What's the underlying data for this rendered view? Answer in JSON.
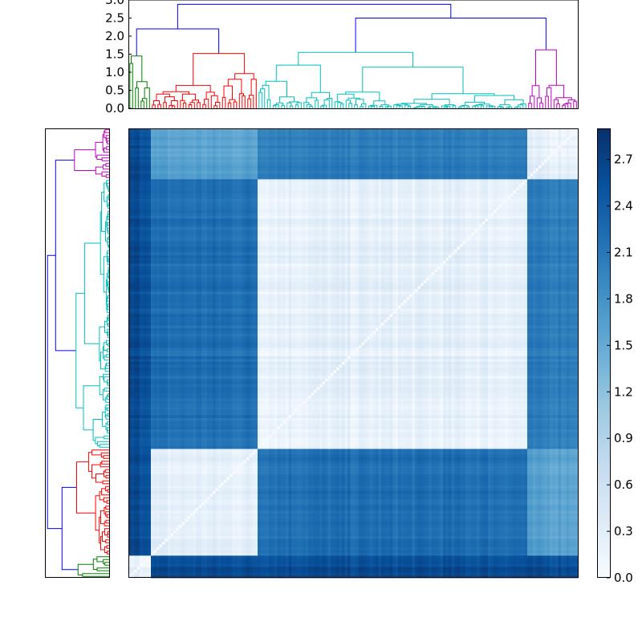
{
  "chart_data": {
    "type": "heatmap",
    "title": "",
    "xlabel": "",
    "ylabel": "",
    "colormap": "Blues",
    "colors": {
      "cmap_low": "#f7fbff",
      "cmap_mid": "#6baed6",
      "cmap_high": "#08306b",
      "link_above_threshold": "#0000ff",
      "cluster_green": "#008000",
      "cluster_red": "#ff0000",
      "cluster_cyan": "#00bfbf",
      "cluster_magenta": "#bf00bf"
    },
    "clusters": [
      {
        "id": "green",
        "color": "#008000",
        "fraction": 0.05
      },
      {
        "id": "red",
        "color": "#ff0000",
        "fraction": 0.24
      },
      {
        "id": "cyan",
        "color": "#00bfbf",
        "fraction": 0.6
      },
      {
        "id": "magenta",
        "color": "#bf00bf",
        "fraction": 0.11
      }
    ],
    "matrix_value_ranges": {
      "within_cluster": [
        0.0,
        0.5
      ],
      "red_vs_cyan": [
        2.0,
        2.4
      ],
      "red_vs_magenta": [
        1.4,
        1.8
      ],
      "cyan_vs_magenta": [
        1.9,
        2.2
      ],
      "green_vs_other": [
        2.4,
        2.8
      ]
    },
    "dendrogram_top": {
      "ylim": [
        0,
        3.0
      ],
      "yticks": [
        "0.0",
        "0.5",
        "1.0",
        "1.5",
        "2.0",
        "2.5",
        "3.0"
      ],
      "root_height": 2.88,
      "link_heights": {
        "green_red_join": 2.2,
        "cyan_magenta_join": 2.5,
        "red_cluster_top": 1.52,
        "green_cluster_top": 1.45,
        "cyan_cluster_top": 1.55,
        "magenta_cluster_top": 1.62
      }
    },
    "colorbar": {
      "range": [
        0.0,
        2.9
      ],
      "ticks": [
        "0.0",
        "0.3",
        "0.6",
        "0.9",
        "1.2",
        "1.5",
        "1.8",
        "2.1",
        "2.4",
        "2.7"
      ]
    }
  }
}
